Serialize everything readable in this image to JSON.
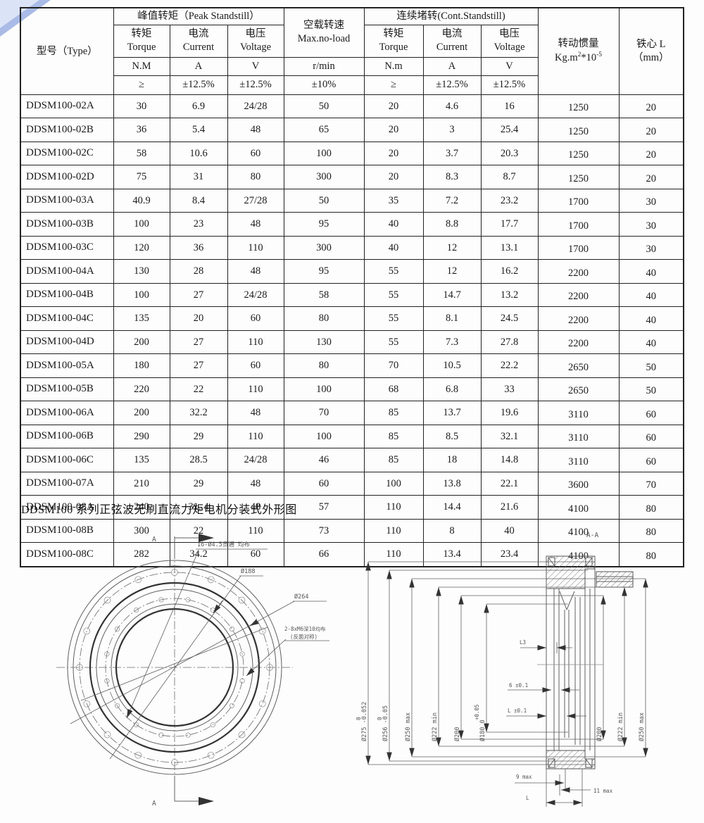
{
  "table": {
    "header": {
      "type_label": "型号（Type）",
      "peak_group": "峰值转矩（Peak Standstill）",
      "noload_cn": "空载转速",
      "noload_en": "Max.no-load",
      "cont_group": "连续堵转(Cont.Standstill)",
      "inertia_label": "转动惯量",
      "inertia_unit_prefix": "Kg.m",
      "inertia_unit_sup1": "2",
      "inertia_unit_mid": "*10",
      "inertia_unit_sup2": "-5",
      "core_label": "铁心 L",
      "core_unit": "（mm）",
      "cols": [
        {
          "cn": "转矩",
          "en": "Torque"
        },
        {
          "cn": "电流",
          "en": "Current"
        },
        {
          "cn": "电压",
          "en": "Voltage"
        },
        {
          "cn": "转矩",
          "en": "Torque"
        },
        {
          "cn": "电流",
          "en": "Current"
        },
        {
          "cn": "电压",
          "en": "Voltage"
        }
      ],
      "units_row": [
        "N.M",
        "A",
        "V",
        "r/min",
        "N.m",
        "A",
        "V"
      ],
      "tol_row": [
        "≥",
        "±12.5%",
        "±12.5%",
        "±10%",
        "≥",
        "±12.5%",
        "±12.5%"
      ]
    },
    "rows": [
      [
        "DDSM100-02A",
        "30",
        "6.9",
        "24/28",
        "50",
        "20",
        "4.6",
        "16",
        "1250",
        "20"
      ],
      [
        "DDSM100-02B",
        "36",
        "5.4",
        "48",
        "65",
        "20",
        "3",
        "25.4",
        "1250",
        "20"
      ],
      [
        "DDSM100-02C",
        "58",
        "10.6",
        "60",
        "100",
        "20",
        "3.7",
        "20.3",
        "1250",
        "20"
      ],
      [
        "DDSM100-02D",
        "75",
        "31",
        "80",
        "300",
        "20",
        "8.3",
        "8.7",
        "1250",
        "20"
      ],
      [
        "DDSM100-03A",
        "40.9",
        "8.4",
        "27/28",
        "50",
        "35",
        "7.2",
        "23.2",
        "1700",
        "30"
      ],
      [
        "DDSM100-03B",
        "100",
        "23",
        "48",
        "95",
        "40",
        "8.8",
        "17.7",
        "1700",
        "30"
      ],
      [
        "DDSM100-03C",
        "120",
        "36",
        "110",
        "300",
        "40",
        "12",
        "13.1",
        "1700",
        "30"
      ],
      [
        "DDSM100-04A",
        "130",
        "28",
        "48",
        "95",
        "55",
        "12",
        "16.2",
        "2200",
        "40"
      ],
      [
        "DDSM100-04B",
        "100",
        "27",
        "24/28",
        "58",
        "55",
        "14.7",
        "13.2",
        "2200",
        "40"
      ],
      [
        "DDSM100-04C",
        "135",
        "20",
        "60",
        "80",
        "55",
        "8.1",
        "24.5",
        "2200",
        "40"
      ],
      [
        "DDSM100-04D",
        "200",
        "27",
        "110",
        "130",
        "55",
        "7.3",
        "27.8",
        "2200",
        "40"
      ],
      [
        "DDSM100-05A",
        "180",
        "27",
        "60",
        "80",
        "70",
        "10.5",
        "22.2",
        "2650",
        "50"
      ],
      [
        "DDSM100-05B",
        "220",
        "22",
        "110",
        "100",
        "68",
        "6.8",
        "33",
        "2650",
        "50"
      ],
      [
        "DDSM100-06A",
        "200",
        "32.2",
        "48",
        "70",
        "85",
        "13.7",
        "19.6",
        "3110",
        "60"
      ],
      [
        "DDSM100-06B",
        "290",
        "29",
        "110",
        "100",
        "85",
        "8.5",
        "32.1",
        "3110",
        "60"
      ],
      [
        "DDSM100-06C",
        "135",
        "28.5",
        "24/28",
        "46",
        "85",
        "18",
        "14.8",
        "3110",
        "60"
      ],
      [
        "DDSM100-07A",
        "210",
        "29",
        "48",
        "60",
        "100",
        "13.8",
        "22.1",
        "3600",
        "70"
      ],
      [
        "DDSM100-08A",
        "240",
        "31..4",
        "48",
        "57",
        "110",
        "14.4",
        "21.6",
        "4100",
        "80"
      ],
      [
        "DDSM100-08B",
        "300",
        "22",
        "110",
        "73",
        "110",
        "8",
        "40",
        "4100",
        "80"
      ],
      [
        "DDSM100-08C",
        "282",
        "34.2",
        "60",
        "66",
        "110",
        "13.4",
        "23.4",
        "4100",
        "80"
      ]
    ]
  },
  "caption": "DDSM100 系列正弦波无刷直流力矩电机分装式外形图",
  "front_view": {
    "section_mark": "A",
    "labels": {
      "holes_outer": "16-Ø4.5贯通 均布",
      "dia_188": "Ø188",
      "dia_264": "Ø264",
      "holes_inner_1": "2-8xM6深10均布",
      "holes_inner_2": "(反面对称)"
    }
  },
  "section_view": {
    "title": "A-A",
    "dims_left": [
      {
        "main": "Ø275 -0.052",
        "sup": "0"
      },
      {
        "main": "Ø256 -0.05",
        "sup": "0"
      },
      {
        "main": "Ø250 max",
        "sup": ""
      },
      {
        "main": "Ø222 min",
        "sup": ""
      },
      {
        "main": "Ø200",
        "sup": ""
      },
      {
        "main": "Ø180 0",
        "sup": "+0.05"
      }
    ],
    "dims_right": [
      "Ø200",
      "Ø222 min",
      "Ø250 max"
    ],
    "dims_mid": {
      "l3": "L3",
      "six": "6 ±0.1",
      "l01": "L ±0.1"
    },
    "dims_bottom": {
      "nine": "9 max",
      "eleven": "11 max",
      "l": "L"
    }
  }
}
